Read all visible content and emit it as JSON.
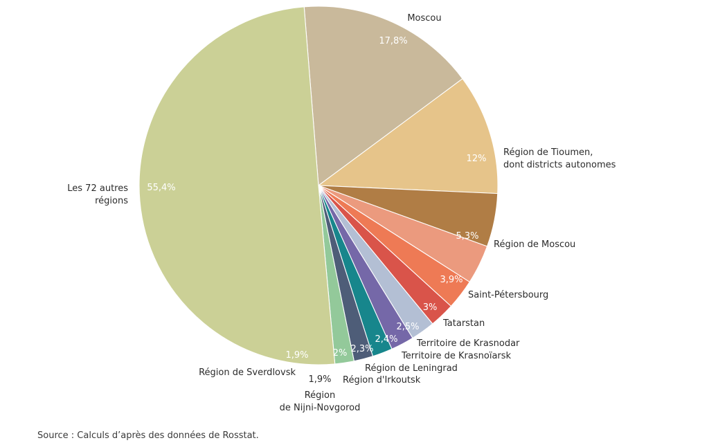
{
  "chart_data": {
    "type": "pie",
    "slices": [
      {
        "label": "Moscou",
        "value": 17.8,
        "value_label": "17,8%",
        "color": "#c9b99b"
      },
      {
        "label": "Région de Tioumen,\ndont districts autonomes",
        "value": 12.0,
        "value_label": "12%",
        "color": "#e6c48a"
      },
      {
        "label": "Région de Moscou",
        "value": 5.3,
        "value_label": "5,3%",
        "color": "#b07d45"
      },
      {
        "label": "Saint-Pétersbourg",
        "value": 3.9,
        "value_label": "3,9%",
        "color": "#eb9a7e"
      },
      {
        "label": "Tatarstan",
        "value": 3.0,
        "value_label": "3%",
        "color": "#ee7a55"
      },
      {
        "label": "Territoire de Krasnodar",
        "value": 2.5,
        "value_label": "2,5%",
        "color": "#d9544a"
      },
      {
        "label": "Territoire de Krasnoïarsk",
        "value": 2.4,
        "value_label": "2,4%",
        "color": "#b3bfd4"
      },
      {
        "label": "Région de Leningrad",
        "value": 2.3,
        "value_label": "2,3%",
        "color": "#7568a8"
      },
      {
        "label": "Région d'Irkoutsk",
        "value": 2.0,
        "value_label": "2%",
        "color": "#17868c"
      },
      {
        "label": "Région\nde Nijni-Novgorod",
        "value": 1.9,
        "value_label": "1,9%",
        "color": "#4e5d78"
      },
      {
        "label": "Région de Sverdlovsk",
        "value": 1.9,
        "value_label": "1,9%",
        "color": "#93c99a"
      },
      {
        "label": "Les 72 autres\nrégions",
        "value": 55.4,
        "value_label": "55,4%",
        "color": "#cbd096"
      }
    ]
  },
  "footer": {
    "source": "Source : Calculs d’après des données de Rosstat."
  }
}
